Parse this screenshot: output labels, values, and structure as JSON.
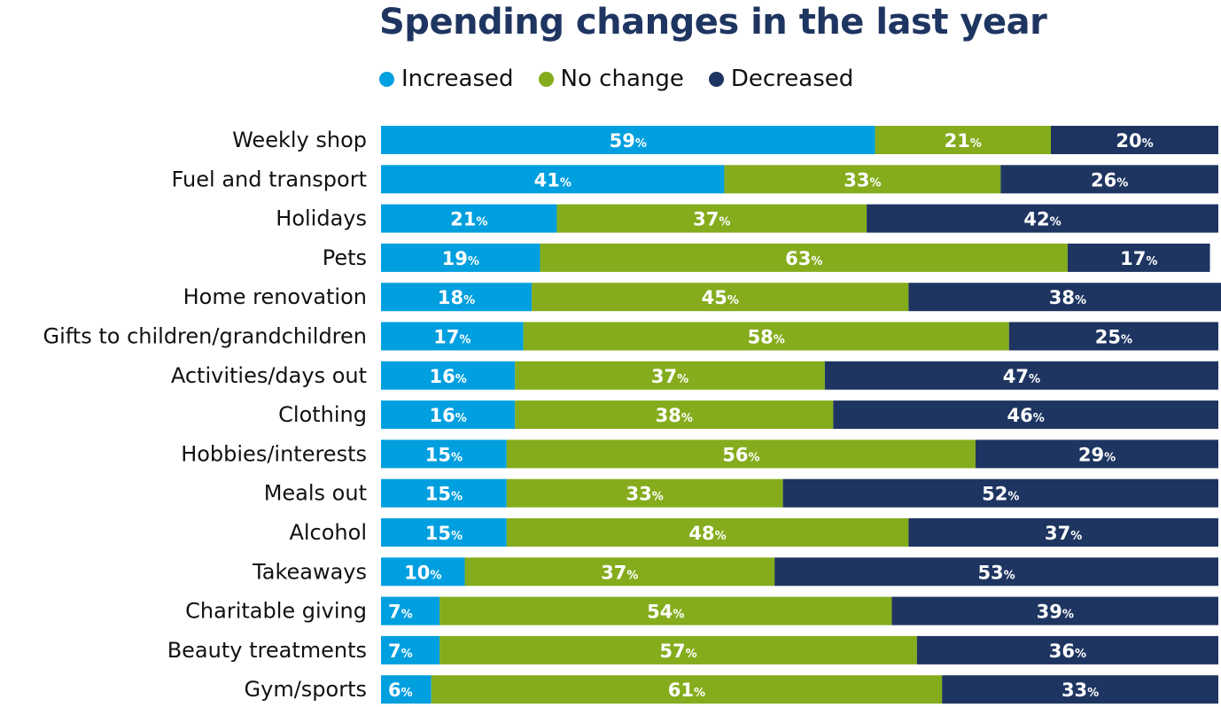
{
  "chart_data": {
    "type": "bar",
    "orientation": "horizontal",
    "stacked": true,
    "title": "Spending changes in the last year",
    "xlabel": "",
    "ylabel": "",
    "xlim": [
      0,
      100
    ],
    "grid": false,
    "legend_position": "top-left",
    "value_suffix": "%",
    "categories": [
      "Weekly shop",
      "Fuel and transport",
      "Holidays",
      "Pets",
      "Home renovation",
      "Gifts to children/grandchildren",
      "Activities/days out",
      "Clothing",
      "Hobbies/interests",
      "Meals out",
      "Alcohol",
      "Takeaways",
      "Charitable giving",
      "Beauty treatments",
      "Gym/sports"
    ],
    "series": [
      {
        "name": "Increased",
        "color": "#009fdf",
        "values": [
          59,
          41,
          21,
          19,
          18,
          17,
          16,
          16,
          15,
          15,
          15,
          10,
          7,
          7,
          6
        ]
      },
      {
        "name": "No change",
        "color": "#84ac1c",
        "values": [
          21,
          33,
          37,
          63,
          45,
          58,
          37,
          38,
          56,
          33,
          48,
          37,
          54,
          57,
          61
        ]
      },
      {
        "name": "Decreased",
        "color": "#1f3561",
        "values": [
          20,
          26,
          42,
          17,
          38,
          25,
          47,
          46,
          29,
          52,
          37,
          53,
          39,
          36,
          33
        ]
      }
    ]
  }
}
